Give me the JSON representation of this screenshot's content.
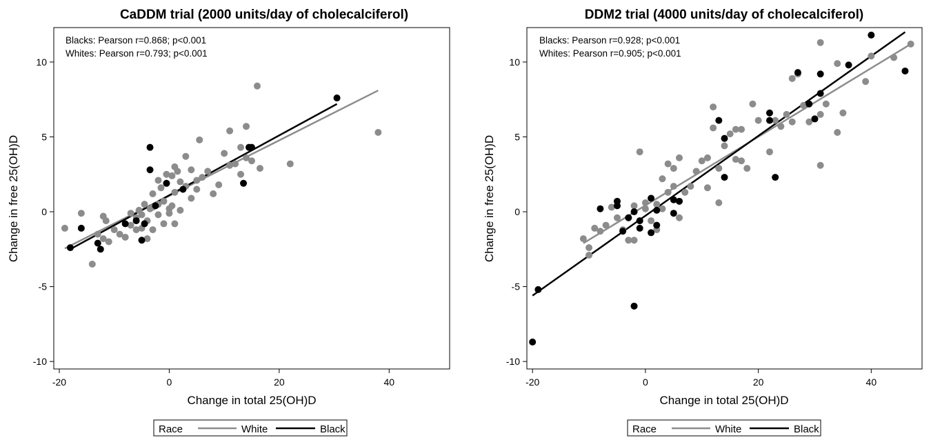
{
  "chart_data": [
    {
      "type": "scatter",
      "title": "CaDDM trial (2000 units/day of cholecalciferol)",
      "xlabel": "Change in total 25(OH)D",
      "ylabel": "Change in free 25(OH)D",
      "xlim": [
        -21,
        51
      ],
      "ylim": [
        -10.5,
        12.3
      ],
      "xticks": [
        -20,
        0,
        20,
        40
      ],
      "xtick_labels": [
        "-20",
        "0",
        "20",
        "40"
      ],
      "yticks": [
        -10,
        -5,
        0,
        5,
        10
      ],
      "ytick_labels": [
        "-10",
        "-5",
        "0",
        "5",
        "10"
      ],
      "grid": false,
      "annotations": [
        "Blacks: Pearson r=0.868; p<0.001",
        "Whites: Pearson r=0.793; p<0.001"
      ],
      "legend": {
        "title": "Race",
        "position": "bottom",
        "entries": [
          "White",
          "Black"
        ]
      },
      "series": [
        {
          "name": "White",
          "color": "#8c8c8c",
          "points": [
            [
              -19,
              -1.1
            ],
            [
              -16,
              -0.1
            ],
            [
              -14,
              -3.5
            ],
            [
              -12,
              -1.8
            ],
            [
              -12,
              -0.3
            ],
            [
              -11.5,
              -0.6
            ],
            [
              -11,
              -2
            ],
            [
              -13,
              -1.5
            ],
            [
              -10,
              -1.2
            ],
            [
              -9,
              -1.5
            ],
            [
              -8,
              -1.7
            ],
            [
              -7,
              -0.9
            ],
            [
              -7,
              -0.1
            ],
            [
              -6,
              -1.2
            ],
            [
              -6,
              -0.4
            ],
            [
              -5.5,
              0.1
            ],
            [
              -5,
              -1.1
            ],
            [
              -5,
              -0.2
            ],
            [
              -4.5,
              0.5
            ],
            [
              -4,
              -1.8
            ],
            [
              -4,
              -0.6
            ],
            [
              -3.5,
              0.2
            ],
            [
              -3,
              -1.2
            ],
            [
              -3,
              0.3
            ],
            [
              -3,
              1.2
            ],
            [
              -2,
              2.1
            ],
            [
              -2,
              0.5
            ],
            [
              -2,
              -0.2
            ],
            [
              -1.5,
              1.6
            ],
            [
              -1,
              0.7
            ],
            [
              -1,
              -0.8
            ],
            [
              -0.5,
              2.5
            ],
            [
              -0.5,
              1.9
            ],
            [
              0,
              0.2
            ],
            [
              0,
              -0.1
            ],
            [
              0.5,
              0.4
            ],
            [
              0.5,
              2.4
            ],
            [
              1,
              1.3
            ],
            [
              1,
              -0.8
            ],
            [
              1,
              3
            ],
            [
              1.5,
              2.7
            ],
            [
              2,
              2
            ],
            [
              2,
              0.1
            ],
            [
              2.5,
              1.5
            ],
            [
              3,
              3.7
            ],
            [
              3,
              1.7
            ],
            [
              4,
              2.8
            ],
            [
              4,
              0.9
            ],
            [
              5,
              1.5
            ],
            [
              5,
              2.1
            ],
            [
              5.5,
              4.8
            ],
            [
              6,
              2.3
            ],
            [
              7,
              2.7
            ],
            [
              8,
              1.2
            ],
            [
              9,
              1.8
            ],
            [
              10,
              3.9
            ],
            [
              11,
              5.4
            ],
            [
              11,
              3.1
            ],
            [
              12,
              3.2
            ],
            [
              13,
              4.3
            ],
            [
              13,
              2.5
            ],
            [
              14,
              5.7
            ],
            [
              14,
              3.6
            ],
            [
              15,
              3.4
            ],
            [
              16,
              8.4
            ],
            [
              16.5,
              2.9
            ],
            [
              22,
              3.2
            ],
            [
              38,
              5.3
            ]
          ]
        },
        {
          "name": "Black",
          "color": "#000000",
          "points": [
            [
              -18,
              -2.4
            ],
            [
              -16,
              -1.1
            ],
            [
              -13,
              -2.1
            ],
            [
              -12.5,
              -2.5
            ],
            [
              -8,
              -0.8
            ],
            [
              -6,
              -0.6
            ],
            [
              -5,
              -1.9
            ],
            [
              -4.5,
              -0.8
            ],
            [
              -3.5,
              2.8
            ],
            [
              -3.5,
              4.3
            ],
            [
              -2.5,
              0.4
            ],
            [
              -0.5,
              1.9
            ],
            [
              2.5,
              1.5
            ],
            [
              13.5,
              1.9
            ],
            [
              14.5,
              4.3
            ],
            [
              15,
              4.3
            ],
            [
              30.5,
              7.6
            ]
          ]
        }
      ],
      "fit_lines": [
        {
          "name": "White",
          "color": "#8c8c8c",
          "x": [
            -19,
            38
          ],
          "y": [
            -2.45,
            8.1
          ]
        },
        {
          "name": "Black",
          "color": "#000000",
          "x": [
            -18,
            30.5
          ],
          "y": [
            -2.5,
            7.2
          ]
        }
      ]
    },
    {
      "type": "scatter",
      "title": "DDM2 trial (4000 units/day of cholecalciferol)",
      "xlabel": "Change in total 25(OH)D",
      "ylabel": "Change in free 25(OH)D",
      "xlim": [
        -21,
        49
      ],
      "ylim": [
        -10.5,
        12.3
      ],
      "xticks": [
        -20,
        0,
        20,
        40
      ],
      "xtick_labels": [
        "-20",
        "0",
        "20",
        "40"
      ],
      "yticks": [
        -10,
        -5,
        0,
        5,
        10
      ],
      "ytick_labels": [
        "-10",
        "-5",
        "0",
        "5",
        "10"
      ],
      "grid": false,
      "annotations": [
        "Blacks: Pearson r=0.928; p<0.001",
        "Whites: Pearson r=0.905; p<0.001"
      ],
      "legend": {
        "title": "Race",
        "position": "bottom",
        "entries": [
          "White",
          "Black"
        ]
      },
      "series": [
        {
          "name": "White",
          "color": "#8c8c8c",
          "points": [
            [
              -11,
              -1.8
            ],
            [
              -10,
              -2.4
            ],
            [
              -10,
              -2.9
            ],
            [
              -9,
              -1.1
            ],
            [
              -8,
              -1.3
            ],
            [
              -7,
              -0.9
            ],
            [
              -6,
              0.3
            ],
            [
              -5,
              -0.4
            ],
            [
              -4,
              -1.2
            ],
            [
              -3,
              -0.4
            ],
            [
              -3,
              -1.9
            ],
            [
              -2,
              -1.9
            ],
            [
              -2,
              0.4
            ],
            [
              -1,
              4
            ],
            [
              -1,
              -0.6
            ],
            [
              0,
              0.6
            ],
            [
              0,
              0.2
            ],
            [
              1,
              -0.6
            ],
            [
              1,
              0.9
            ],
            [
              2,
              -1.2
            ],
            [
              2,
              0.5
            ],
            [
              3,
              2.2
            ],
            [
              3,
              0.2
            ],
            [
              4,
              3.2
            ],
            [
              4,
              1.3
            ],
            [
              5,
              2.9
            ],
            [
              5,
              1.7
            ],
            [
              6,
              3.6
            ],
            [
              6,
              -0.4
            ],
            [
              7,
              1.3
            ],
            [
              8,
              1.7
            ],
            [
              9,
              2.7
            ],
            [
              10,
              3.4
            ],
            [
              11,
              3.6
            ],
            [
              11,
              1.6
            ],
            [
              12,
              7
            ],
            [
              12,
              5.6
            ],
            [
              13,
              2.9
            ],
            [
              13,
              0.6
            ],
            [
              14,
              4.4
            ],
            [
              15,
              5.2
            ],
            [
              16,
              5.5
            ],
            [
              16,
              3.5
            ],
            [
              17,
              5.5
            ],
            [
              17,
              3.4
            ],
            [
              18,
              2.9
            ],
            [
              19,
              7.2
            ],
            [
              20,
              6.1
            ],
            [
              22,
              4
            ],
            [
              23,
              6.1
            ],
            [
              24,
              5.7
            ],
            [
              25,
              6.5
            ],
            [
              26,
              8.9
            ],
            [
              27,
              9.2
            ],
            [
              28,
              7.1
            ],
            [
              29,
              6
            ],
            [
              30,
              6.2
            ],
            [
              31,
              11.3
            ],
            [
              31,
              3.1
            ],
            [
              32,
              7.2
            ],
            [
              34,
              9.9
            ],
            [
              34,
              5.3
            ],
            [
              35,
              6.6
            ],
            [
              39,
              8.7
            ],
            [
              40,
              10.4
            ],
            [
              44,
              10.3
            ],
            [
              47,
              11.2
            ],
            [
              31,
              6.5
            ],
            [
              26,
              6
            ]
          ]
        },
        {
          "name": "Black",
          "color": "#000000",
          "points": [
            [
              -20,
              -8.7
            ],
            [
              -19,
              -5.2
            ],
            [
              -8,
              0.2
            ],
            [
              -5,
              0.7
            ],
            [
              -5,
              0.4
            ],
            [
              -4,
              -1.3
            ],
            [
              -3,
              -0.4
            ],
            [
              -2,
              -6.3
            ],
            [
              -2,
              0
            ],
            [
              -1,
              -0.6
            ],
            [
              -1,
              -1.1
            ],
            [
              1,
              0.9
            ],
            [
              1,
              -1.4
            ],
            [
              2,
              -0.9
            ],
            [
              2,
              0.1
            ],
            [
              5,
              0.8
            ],
            [
              5,
              -0.1
            ],
            [
              6,
              0.7
            ],
            [
              13,
              6.1
            ],
            [
              14,
              4.9
            ],
            [
              14,
              2.3
            ],
            [
              22,
              6.6
            ],
            [
              22,
              6.1
            ],
            [
              23,
              2.3
            ],
            [
              27,
              9.3
            ],
            [
              29,
              7.2
            ],
            [
              30,
              6.2
            ],
            [
              31,
              9.2
            ],
            [
              31,
              7.9
            ],
            [
              36,
              9.8
            ],
            [
              40,
              11.8
            ],
            [
              46,
              9.4
            ]
          ]
        }
      ],
      "fit_lines": [
        {
          "name": "White",
          "color": "#8c8c8c",
          "x": [
            -11,
            47
          ],
          "y": [
            -2.1,
            11.2
          ]
        },
        {
          "name": "Black",
          "color": "#000000",
          "x": [
            -20,
            46
          ],
          "y": [
            -5.6,
            12
          ]
        }
      ]
    }
  ]
}
